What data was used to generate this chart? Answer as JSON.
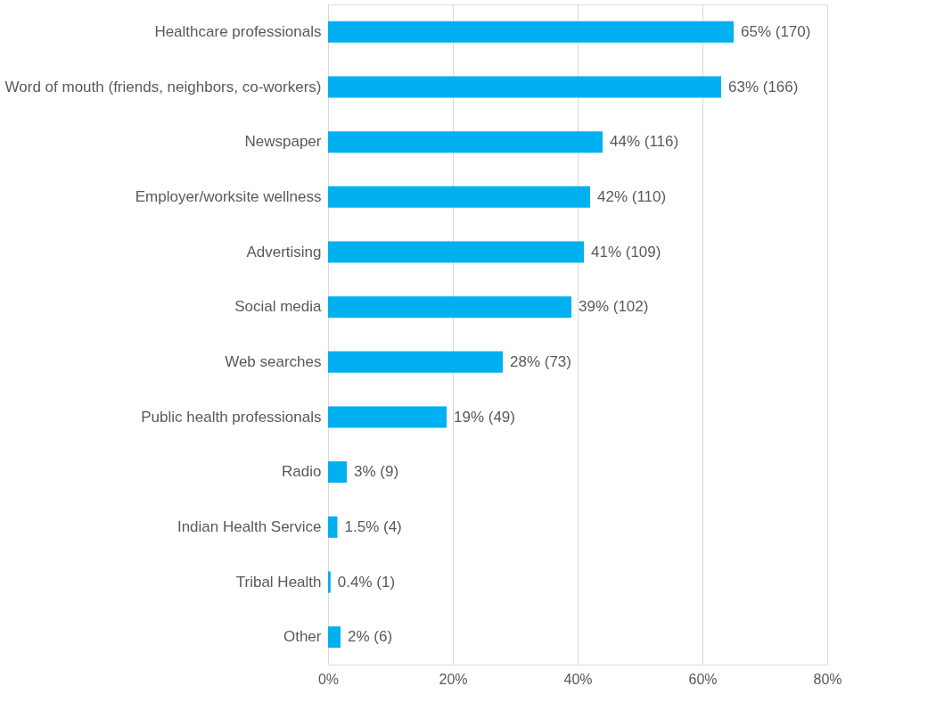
{
  "chart_data": {
    "type": "bar",
    "orientation": "horizontal",
    "categories": [
      "Healthcare professionals",
      "Word of mouth (friends, neighbors, co-workers)",
      "Newspaper",
      "Employer/worksite wellness",
      "Advertising",
      "Social media",
      "Web searches",
      "Public health professionals",
      "Radio",
      "Indian Health Service",
      "Tribal Health",
      "Other"
    ],
    "values": [
      65,
      63,
      44,
      42,
      41,
      39,
      28,
      19,
      3,
      1.5,
      0.4,
      2
    ],
    "value_labels": [
      "65% (170)",
      "63% (166)",
      "44% (116)",
      "42% (110)",
      "41% (109)",
      "39% (102)",
      "28% (73)",
      "19% (49)",
      "3% (9)",
      "1.5% (4)",
      "0.4% (1)",
      "2% (6)"
    ],
    "color": "#00b0f0",
    "xlim": [
      0,
      80
    ],
    "xticks": [
      {
        "value": 0,
        "label": "0%"
      },
      {
        "value": 20,
        "label": "20%"
      },
      {
        "value": 40,
        "label": "40%"
      },
      {
        "value": 60,
        "label": "60%"
      },
      {
        "value": 80,
        "label": "80%"
      }
    ],
    "grid": "x"
  }
}
